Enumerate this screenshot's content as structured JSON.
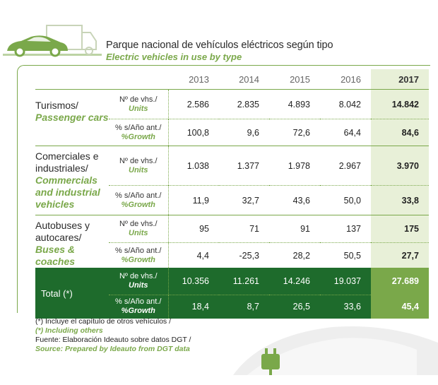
{
  "header": {
    "title_es": "Parque nacional de vehículos eléctricos según tipo",
    "title_en": "Electric vehicles in use by type"
  },
  "icons": {
    "truck_car": "truck-and-car-icon",
    "charging_car": "charging-car-icon"
  },
  "colors": {
    "accent_green": "#7aa84a",
    "dark_green": "#1e6b2c",
    "highlight": "#e8f0d8"
  },
  "table": {
    "years": [
      "2013",
      "2014",
      "2015",
      "2016",
      "2017"
    ],
    "groups": [
      {
        "cat_es": "Turismos/",
        "cat_en": "Passenger cars",
        "rows": [
          {
            "m_es": "Nº de vhs./",
            "m_en": "Units",
            "v": [
              "2.586",
              "2.835",
              "4.893",
              "8.042",
              "14.842"
            ]
          },
          {
            "m_es": "% s/Año ant./",
            "m_en": "%Growth",
            "v": [
              "100,8",
              "9,6",
              "72,6",
              "64,4",
              "84,6"
            ]
          }
        ]
      },
      {
        "cat_es": "Comerciales e industriales/",
        "cat_en": "Commercials and industrial vehicles",
        "rows": [
          {
            "m_es": "Nº de vhs./",
            "m_en": "Units",
            "v": [
              "1.038",
              "1.377",
              "1.978",
              "2.967",
              "3.970"
            ]
          },
          {
            "m_es": "% s/Año ant./",
            "m_en": "%Growth",
            "v": [
              "11,9",
              "32,7",
              "43,6",
              "50,0",
              "33,8"
            ]
          }
        ]
      },
      {
        "cat_es": "Autobuses y autocares/",
        "cat_en": "Buses & coaches",
        "rows": [
          {
            "m_es": "Nº de vhs./",
            "m_en": "Units",
            "v": [
              "95",
              "71",
              "91",
              "137",
              "175"
            ]
          },
          {
            "m_es": "% s/Año ant./",
            "m_en": "%Growth",
            "v": [
              "4,4",
              "-25,3",
              "28,2",
              "50,5",
              "27,7"
            ]
          }
        ]
      }
    ],
    "total": {
      "label": "Total (*)",
      "rows": [
        {
          "m_es": "Nº de vhs./",
          "m_en": "Units",
          "v": [
            "10.356",
            "11.261",
            "14.246",
            "19.037",
            "27.689"
          ]
        },
        {
          "m_es": "% s/Año ant./",
          "m_en": "%Growth",
          "v": [
            "18,4",
            "8,7",
            "26,5",
            "33,6",
            "45,4"
          ]
        }
      ]
    }
  },
  "footnotes": {
    "note_es": "(*) Incluye el capítulo de otros vehículos /",
    "note_en": "(*) Including others",
    "source_es": "Fuente: Elaboración Ideauto sobre datos DGT /",
    "source_en": "Source: Prepared by Ideauto from DGT data"
  }
}
